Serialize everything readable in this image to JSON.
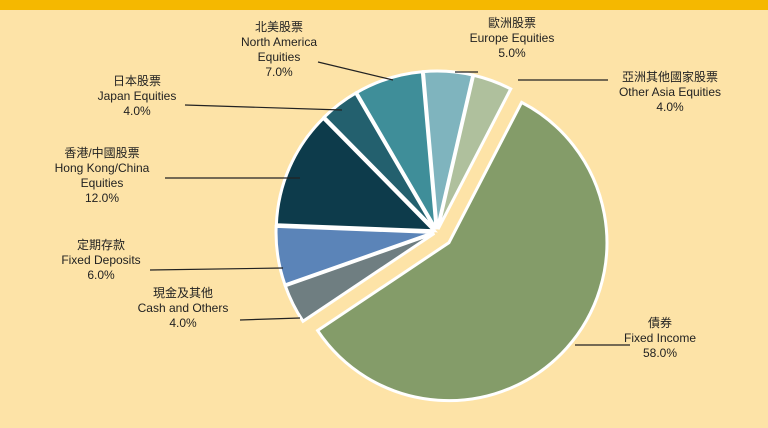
{
  "chart_data": {
    "type": "pie",
    "categories": [
      "Europe Equities",
      "Other Asia Equities",
      "Fixed Income",
      "Cash and Others",
      "Fixed Deposits",
      "Hong Kong/China Equities",
      "Japan Equities",
      "North America Equities"
    ],
    "categories_zh": [
      "歐洲股票",
      "亞洲其他國家股票",
      "債券",
      "現金及其他",
      "定期存款",
      "香港/中國股票",
      "日本股票",
      "北美股票"
    ],
    "values": [
      5,
      4,
      58,
      4,
      6,
      12,
      4,
      7
    ],
    "value_labels": [
      "5.0%",
      "4.0%",
      "58.0%",
      "4.0%",
      "6.0%",
      "12.0%",
      "4.0%",
      "7.0%"
    ],
    "colors": [
      "#7fb4be",
      "#afc09d",
      "#849c69",
      "#6f7e81",
      "#5b84b8",
      "#0d3b4b",
      "#23606e",
      "#3f8e99"
    ]
  }
}
